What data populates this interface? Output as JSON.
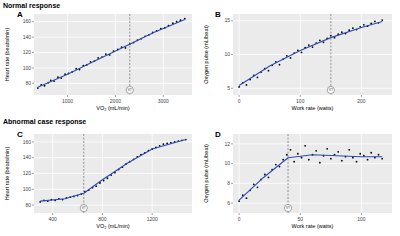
{
  "sections": [
    {
      "title": "Normal response"
    },
    {
      "title": "Abnormal case response"
    }
  ],
  "chart_data": [
    {
      "type": "scatter",
      "title": "A",
      "x_label": "VO₂ (mL/min)",
      "y_label": "Heart rate (beats/min)",
      "xlim": [
        300,
        3600
      ],
      "xticks": [
        1000,
        2000,
        3000
      ],
      "ylim": [
        65,
        170
      ],
      "yticks": [
        80,
        100,
        120,
        140,
        160
      ],
      "grid": true,
      "annotations": [
        {
          "x": 2300,
          "label": "VT",
          "line_style": "dashed"
        }
      ],
      "series": [
        {
          "type": "scatter",
          "color": "#000000",
          "marker": "circle",
          "x": [
            380,
            450,
            520,
            600,
            650,
            720,
            800,
            870,
            950,
            1020,
            1100,
            1180,
            1250,
            1330,
            1400,
            1480,
            1560,
            1640,
            1720,
            1800,
            1880,
            1960,
            2050,
            2130,
            2210,
            2300,
            2380,
            2460,
            2540,
            2620,
            2700,
            2780,
            2860,
            2950,
            3030,
            3110,
            3200,
            3280,
            3360,
            3450
          ],
          "values": [
            74,
            78,
            77,
            81,
            84,
            83,
            88,
            87,
            92,
            93,
            95,
            99,
            98,
            103,
            104,
            108,
            109,
            113,
            114,
            118,
            117,
            122,
            124,
            127,
            126,
            131,
            133,
            136,
            138,
            141,
            143,
            146,
            148,
            151,
            152,
            155,
            158,
            160,
            162,
            164
          ]
        },
        {
          "type": "line",
          "color": "#2b4bb5",
          "x": [
            380,
            1000,
            1600,
            2200,
            2800,
            3450
          ],
          "values": [
            75,
            92,
            110,
            128,
            146,
            163
          ]
        }
      ]
    },
    {
      "type": "scatter",
      "title": "B",
      "x_label": "Work rate (watts)",
      "y_label": "Oxygen pulse (mL/beat)",
      "xlim": [
        -10,
        250
      ],
      "xticks": [
        0,
        100,
        200
      ],
      "ylim": [
        4,
        16
      ],
      "yticks": [
        5,
        10,
        15
      ],
      "grid": true,
      "annotations": [
        {
          "x": 150,
          "label": "VT",
          "line_style": "dashed"
        }
      ],
      "series": [
        {
          "type": "scatter",
          "color": "#000000",
          "marker": "circle",
          "x": [
            0,
            6,
            12,
            18,
            24,
            30,
            36,
            42,
            48,
            54,
            60,
            66,
            72,
            78,
            84,
            90,
            96,
            102,
            108,
            114,
            120,
            126,
            132,
            138,
            144,
            150,
            156,
            162,
            168,
            174,
            180,
            186,
            192,
            198,
            204,
            210,
            216,
            222,
            228,
            234
          ],
          "values": [
            5.2,
            5.8,
            5.5,
            6.3,
            6.9,
            6.6,
            7.4,
            7.9,
            7.6,
            8.4,
            8.9,
            8.5,
            9.3,
            9.8,
            9.5,
            10.2,
            10.6,
            10.3,
            11.0,
            11.4,
            11.1,
            11.7,
            12.1,
            11.8,
            12.4,
            12.8,
            12.5,
            13.0,
            13.3,
            13.1,
            13.6,
            13.9,
            13.7,
            14.1,
            14.4,
            14.2,
            14.6,
            14.9,
            14.7,
            15.1
          ]
        },
        {
          "type": "line",
          "color": "#2b4bb5",
          "x": [
            0,
            50,
            100,
            150,
            200,
            234
          ],
          "values": [
            5.4,
            8.3,
            10.6,
            12.5,
            14.0,
            14.9
          ]
        }
      ]
    },
    {
      "type": "scatter",
      "title": "C",
      "x_label": "VO₂ (mL/min)",
      "y_label": "Heart rate (beats/min)",
      "xlim": [
        250,
        1520
      ],
      "xticks": [
        400,
        800,
        1200
      ],
      "ylim": [
        70,
        170
      ],
      "yticks": [
        80,
        100,
        120,
        140,
        160
      ],
      "grid": true,
      "annotations": [
        {
          "x": 650,
          "label": "VT",
          "line_style": "dashed"
        }
      ],
      "series": [
        {
          "type": "scatter",
          "color": "#000000",
          "marker": "circle",
          "x": [
            300,
            330,
            360,
            390,
            420,
            450,
            480,
            510,
            540,
            570,
            600,
            630,
            660,
            690,
            720,
            750,
            780,
            810,
            840,
            870,
            900,
            930,
            960,
            990,
            1020,
            1050,
            1080,
            1110,
            1140,
            1170,
            1200,
            1230,
            1260,
            1290,
            1320,
            1350,
            1380,
            1410,
            1440,
            1470
          ],
          "values": [
            84,
            86,
            85,
            87,
            86,
            88,
            87,
            89,
            90,
            91,
            92,
            94,
            97,
            99,
            102,
            104,
            108,
            111,
            114,
            118,
            121,
            125,
            128,
            132,
            135,
            138,
            141,
            144,
            146,
            149,
            151,
            153,
            155,
            157,
            158,
            159,
            160,
            161,
            162,
            163
          ]
        },
        {
          "type": "line",
          "color": "#2b4bb5",
          "x": [
            300,
            500,
            650,
            800,
            1000,
            1200,
            1470
          ],
          "values": [
            85,
            88,
            95,
            112,
            133,
            151,
            163
          ]
        }
      ]
    },
    {
      "type": "scatter",
      "title": "D",
      "x_label": "Work rate (watts)",
      "y_label": "Oxygen pulse (mL/beat)",
      "xlim": [
        -5,
        125
      ],
      "xticks": [
        0,
        50,
        100
      ],
      "ylim": [
        5,
        13
      ],
      "yticks": [
        6,
        8,
        10,
        12
      ],
      "grid": true,
      "annotations": [
        {
          "x": 40,
          "label": "VT",
          "line_style": "dashed"
        }
      ],
      "series": [
        {
          "type": "scatter",
          "color": "#000000",
          "marker": "circle",
          "x": [
            0,
            3,
            6,
            9,
            12,
            15,
            18,
            21,
            24,
            27,
            30,
            33,
            36,
            39,
            42,
            45,
            48,
            51,
            54,
            57,
            60,
            63,
            66,
            69,
            72,
            75,
            78,
            81,
            84,
            87,
            90,
            93,
            96,
            99,
            102,
            105,
            108,
            111,
            114,
            117
          ],
          "values": [
            6.2,
            6.8,
            6.5,
            7.3,
            7.9,
            7.6,
            8.4,
            8.9,
            8.6,
            9.4,
            9.9,
            9.7,
            10.4,
            10.9,
            11.4,
            10.2,
            11.0,
            10.6,
            11.8,
            10.4,
            10.9,
            11.3,
            10.1,
            10.8,
            11.5,
            10.5,
            10.9,
            11.2,
            10.3,
            10.7,
            11.4,
            10.6,
            10.2,
            11.0,
            10.8,
            10.4,
            11.1,
            10.6,
            10.9,
            10.5
          ]
        },
        {
          "type": "line",
          "color": "#2b4bb5",
          "x": [
            0,
            20,
            40,
            60,
            80,
            100,
            117
          ],
          "values": [
            6.3,
            8.6,
            10.6,
            10.9,
            10.8,
            10.7,
            10.7
          ]
        }
      ]
    }
  ]
}
